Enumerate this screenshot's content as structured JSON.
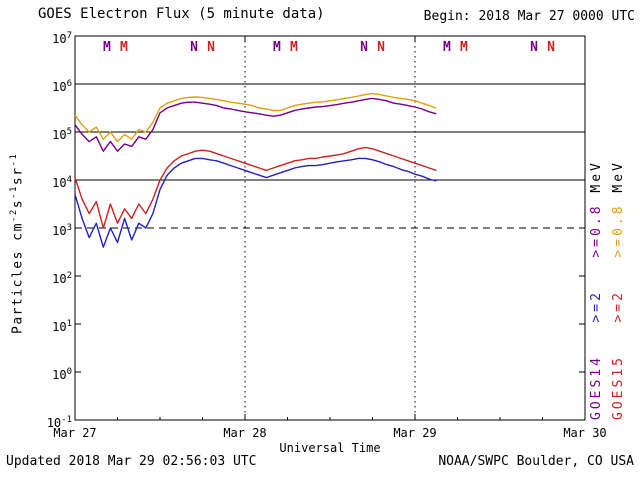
{
  "header": {
    "title": "GOES Electron Flux (5 minute data)",
    "begin": "Begin: 2018 Mar 27 0000 UTC"
  },
  "footer": {
    "updated": "Updated 2018 Mar 29 02:56:03 UTC",
    "source": "NOAA/SWPC Boulder, CO USA"
  },
  "axes": {
    "x_label": "Universal Time",
    "x_tick_labels": [
      "Mar 27",
      "Mar 28",
      "Mar 29",
      "Mar 30"
    ],
    "y_tick_exponents": [
      "7",
      "6",
      "5",
      "4",
      "3",
      "2",
      "1",
      "0",
      "-1"
    ],
    "y_label_parts": [
      {
        "t": "Particles cm"
      },
      {
        "sup": "-2"
      },
      {
        "t": "s"
      },
      {
        "sup": "-1"
      },
      {
        "t": "sr"
      },
      {
        "sup": "-1"
      }
    ]
  },
  "legend": {
    "columns": [
      {
        "satellite": "GOES14",
        "segments": [
          {
            "t": "GOES14",
            "c": "#770088"
          },
          {
            "t": "   ",
            "c": "#000000"
          },
          {
            "t": ">=2",
            "c": "#2222bb"
          },
          {
            "t": "   ",
            "c": "#000000"
          },
          {
            "t": ">=0.8",
            "c": "#770088"
          },
          {
            "t": " MeV",
            "c": "#000000"
          }
        ]
      },
      {
        "satellite": "GOES15",
        "segments": [
          {
            "t": "GOES15",
            "c": "#cc2222"
          },
          {
            "t": "   ",
            "c": "#000000"
          },
          {
            "t": ">=2",
            "c": "#cc2222"
          },
          {
            "t": "   ",
            "c": "#000000"
          },
          {
            "t": ">=0.8",
            "c": "#e0a010"
          },
          {
            "t": " MeV",
            "c": "#000000"
          }
        ]
      }
    ]
  },
  "chart_data": {
    "type": "line",
    "title": "GOES Electron Flux (5 minute data)",
    "xlabel": "Universal Time",
    "ylabel": "Particles cm^-2 s^-1 sr^-1",
    "x_axis": {
      "start": "2018 Mar 27 0000 UTC",
      "end": "2018 Mar 30 0000 UTC",
      "unit": "hours from start",
      "range_hours": [
        0,
        72
      ],
      "tick_hours": [
        0,
        24,
        48,
        72
      ],
      "tick_labels": [
        "Mar 27",
        "Mar 28",
        "Mar 29",
        "Mar 30"
      ]
    },
    "y_axis": {
      "scale": "log10",
      "exponent_ticks": [
        7,
        6,
        5,
        4,
        3,
        2,
        1,
        0,
        -1
      ],
      "ylim_log10": [
        -1,
        7
      ]
    },
    "gridlines": {
      "solid_horizontal_log10": [
        6,
        5,
        4
      ],
      "dashed_horizontal_log10": 3,
      "dotted_vertical_hours": [
        24,
        48
      ]
    },
    "series": [
      {
        "id": "goes14-ge0p8mev",
        "name": "GOES14 >=0.8 MeV",
        "color": "#770088",
        "x_start_hour": 0,
        "x_step_hours": 1,
        "log10_flux": [
          5.15,
          4.95,
          4.8,
          4.9,
          4.6,
          4.8,
          4.6,
          4.75,
          4.7,
          4.9,
          4.85,
          5.05,
          5.4,
          5.5,
          5.55,
          5.6,
          5.62,
          5.62,
          5.6,
          5.58,
          5.55,
          5.5,
          5.48,
          5.45,
          5.42,
          5.4,
          5.38,
          5.35,
          5.33,
          5.35,
          5.4,
          5.45,
          5.48,
          5.5,
          5.52,
          5.53,
          5.55,
          5.57,
          5.6,
          5.62,
          5.65,
          5.68,
          5.7,
          5.68,
          5.65,
          5.6,
          5.58,
          5.55,
          5.52,
          5.48,
          5.42,
          5.38
        ]
      },
      {
        "id": "goes15-ge0p8mev",
        "name": "GOES15 >=0.8 MeV",
        "color": "#e0a010",
        "x_start_hour": 0,
        "x_step_hours": 1,
        "log10_flux": [
          5.35,
          5.15,
          5.0,
          5.1,
          4.85,
          5.0,
          4.8,
          4.95,
          4.85,
          5.05,
          5.0,
          5.2,
          5.5,
          5.6,
          5.65,
          5.7,
          5.72,
          5.73,
          5.72,
          5.7,
          5.68,
          5.65,
          5.62,
          5.6,
          5.58,
          5.55,
          5.5,
          5.48,
          5.45,
          5.45,
          5.5,
          5.55,
          5.58,
          5.6,
          5.62,
          5.63,
          5.65,
          5.67,
          5.7,
          5.72,
          5.75,
          5.78,
          5.8,
          5.78,
          5.75,
          5.72,
          5.7,
          5.68,
          5.65,
          5.6,
          5.55,
          5.5
        ]
      },
      {
        "id": "goes14-ge2mev",
        "name": "GOES14 >=2 MeV",
        "color": "#2222bb",
        "x_start_hour": 0,
        "x_step_hours": 1,
        "log10_flux": [
          3.7,
          3.2,
          2.8,
          3.1,
          2.6,
          3.0,
          2.7,
          3.2,
          2.75,
          3.1,
          3.0,
          3.3,
          3.8,
          4.1,
          4.25,
          4.35,
          4.4,
          4.45,
          4.45,
          4.42,
          4.4,
          4.35,
          4.3,
          4.25,
          4.2,
          4.15,
          4.1,
          4.05,
          4.1,
          4.15,
          4.2,
          4.25,
          4.28,
          4.3,
          4.3,
          4.32,
          4.35,
          4.38,
          4.4,
          4.42,
          4.45,
          4.45,
          4.42,
          4.38,
          4.32,
          4.28,
          4.22,
          4.18,
          4.12,
          4.08,
          4.02,
          3.98
        ]
      },
      {
        "id": "goes15-ge2mev",
        "name": "GOES15 >=2 MeV",
        "color": "#cc2222",
        "x_start_hour": 0,
        "x_step_hours": 1,
        "log10_flux": [
          4.05,
          3.6,
          3.3,
          3.55,
          3.0,
          3.5,
          3.1,
          3.4,
          3.2,
          3.5,
          3.3,
          3.6,
          4.0,
          4.25,
          4.4,
          4.5,
          4.55,
          4.6,
          4.62,
          4.6,
          4.55,
          4.5,
          4.45,
          4.4,
          4.35,
          4.3,
          4.25,
          4.2,
          4.25,
          4.3,
          4.35,
          4.4,
          4.42,
          4.45,
          4.45,
          4.48,
          4.5,
          4.52,
          4.55,
          4.6,
          4.65,
          4.68,
          4.65,
          4.6,
          4.55,
          4.5,
          4.45,
          4.4,
          4.35,
          4.3,
          4.25,
          4.2
        ]
      }
    ],
    "markers": [
      {
        "hour": 4.5,
        "label": "M",
        "color": "#770088"
      },
      {
        "hour": 6.9,
        "label": "M",
        "color": "#cc2222"
      },
      {
        "hour": 16.8,
        "label": "N",
        "color": "#770088"
      },
      {
        "hour": 19.2,
        "label": "N",
        "color": "#cc2222"
      },
      {
        "hour": 28.5,
        "label": "M",
        "color": "#770088"
      },
      {
        "hour": 30.9,
        "label": "M",
        "color": "#cc2222"
      },
      {
        "hour": 40.8,
        "label": "N",
        "color": "#770088"
      },
      {
        "hour": 43.2,
        "label": "N",
        "color": "#cc2222"
      },
      {
        "hour": 52.5,
        "label": "M",
        "color": "#770088"
      },
      {
        "hour": 54.9,
        "label": "M",
        "color": "#cc2222"
      },
      {
        "hour": 64.8,
        "label": "N",
        "color": "#770088"
      },
      {
        "hour": 67.2,
        "label": "N",
        "color": "#cc2222"
      }
    ]
  }
}
